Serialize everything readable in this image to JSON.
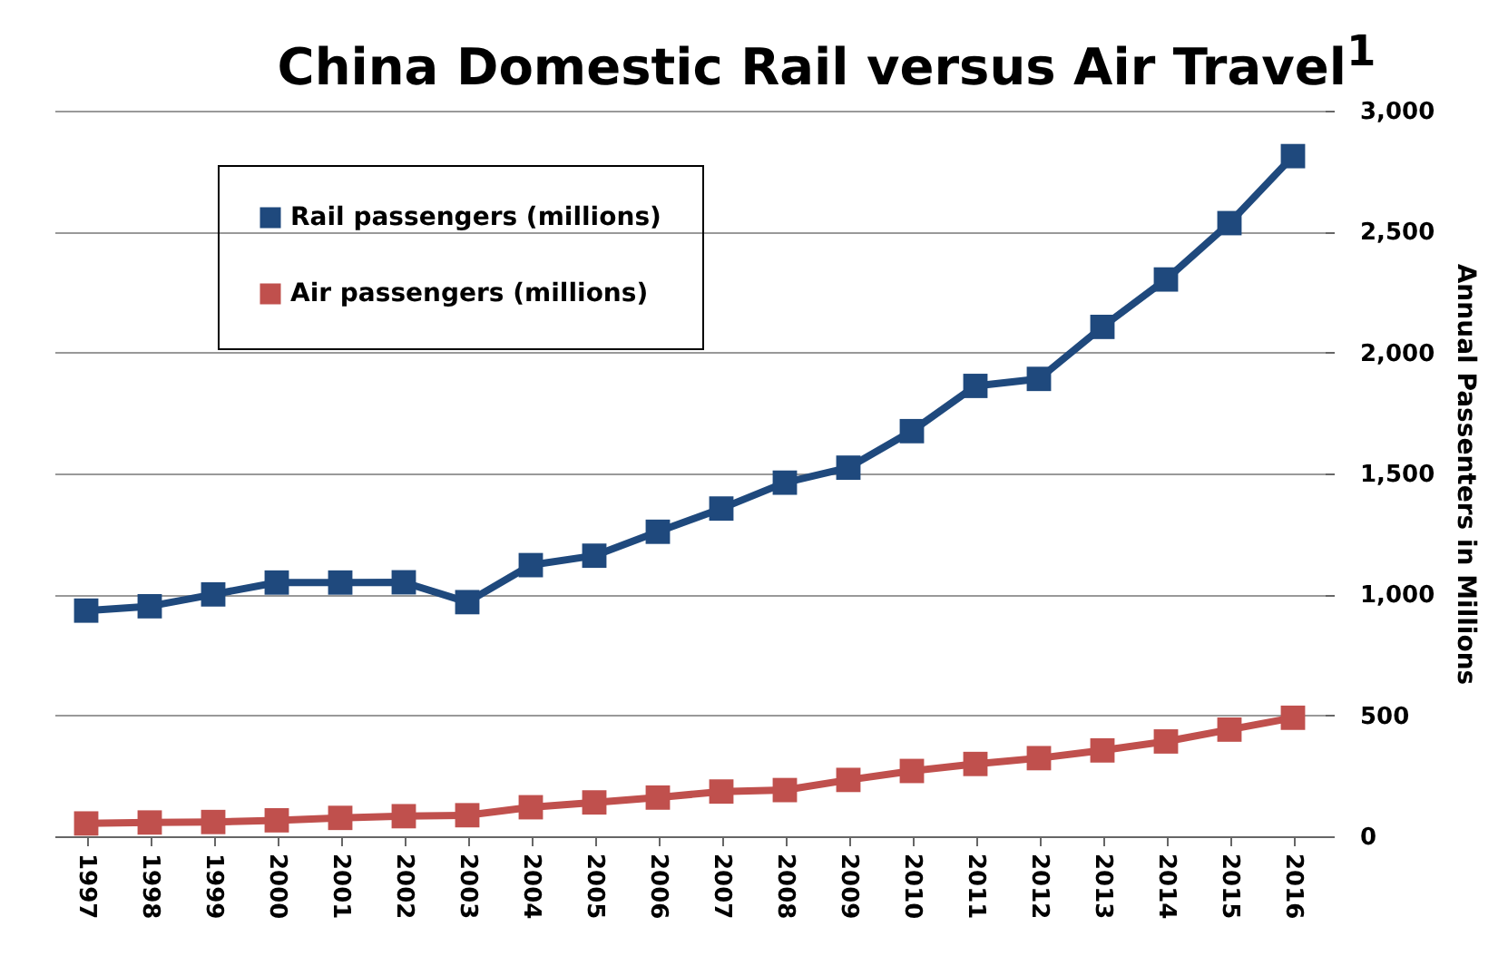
{
  "chart_data": {
    "type": "line",
    "title": "China Domestic Rail versus Air Travel$^{1}$",
    "ylabel": "Annual Passenters in Millions",
    "categories": [
      "1997",
      "1998",
      "1999",
      "2000",
      "2001",
      "2002",
      "2003",
      "2004",
      "2005",
      "2006",
      "2007",
      "2008",
      "2009",
      "2010",
      "2011",
      "2012",
      "2013",
      "2014",
      "2015",
      "2016"
    ],
    "series": [
      {
        "name": "Rail passengers (millions)",
        "color": "#1f497d",
        "values": [
          933,
          951,
          1000,
          1049,
          1049,
          1050,
          968,
          1121,
          1160,
          1259,
          1355,
          1462,
          1524,
          1675,
          1862,
          1891,
          2106,
          2302,
          2535,
          2812
        ]
      },
      {
        "name": "Air passengers (millions)",
        "color": "#c0504d",
        "values": [
          53,
          57,
          59,
          66,
          76,
          83,
          87,
          120,
          140,
          160,
          185,
          191,
          233,
          270,
          299,
          323,
          355,
          392,
          441,
          490
        ]
      }
    ],
    "ylim": [
      0,
      3000
    ],
    "yticks": [
      0,
      500,
      {
        "value": 1000,
        "label": "1,000"
      },
      {
        "value": 1500,
        "label": "1,500"
      },
      {
        "value": 2000,
        "label": "2,000"
      },
      {
        "value": 2500,
        "label": "2,500"
      },
      {
        "value": 3000,
        "label": "3,000"
      }
    ],
    "grid": "y",
    "legend": "top left",
    "marker": "square",
    "line_style": "solid"
  }
}
